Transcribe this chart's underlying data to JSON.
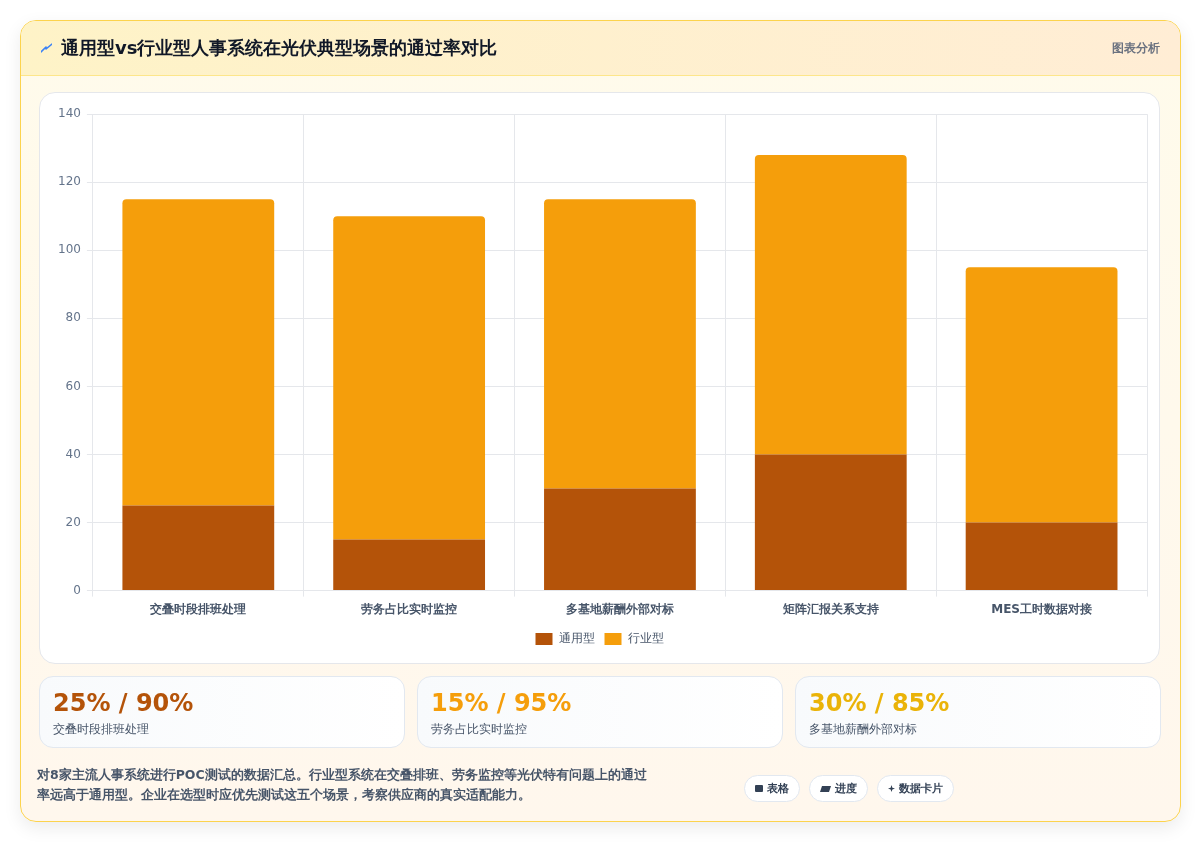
{
  "chart_data": {
    "type": "bar",
    "title": "通用型vs行业型人事系统在光伏典型场景的通过率对比",
    "categories": [
      "交叠时段排班处理",
      "劳务占比实时监控",
      "多基地薪酬外部对标",
      "矩阵汇报关系支持",
      "MES工时数据对接"
    ],
    "series": [
      {
        "name": "通用型",
        "color": "#b45309",
        "values": [
          25,
          15,
          30,
          40,
          20
        ]
      },
      {
        "name": "行业型",
        "color": "#f59e0b",
        "values": [
          90,
          95,
          85,
          88,
          75
        ]
      }
    ],
    "stacked": true,
    "ylim": [
      0,
      140
    ],
    "yticks": [
      0,
      20,
      40,
      60,
      80,
      100,
      120,
      140
    ],
    "grid": true,
    "legend": "bottom",
    "annotations": [
      "图表分析",
      "25% / 90%",
      "交叠时段排班处理",
      "15% / 95%",
      "劳务占比实时监控",
      "30% / 85%",
      "多基地薪酬外部对标",
      "对8家主流人事系统进行POC测试的数据汇总。行业型系统在交叠排班、劳务监控等光伏特有问题上的通过率远高于通用型。企业在选型时应优先测试这五个场景，考察供应商的真实适配能力。",
      "表格",
      "进度",
      "数据卡片"
    ]
  }
}
